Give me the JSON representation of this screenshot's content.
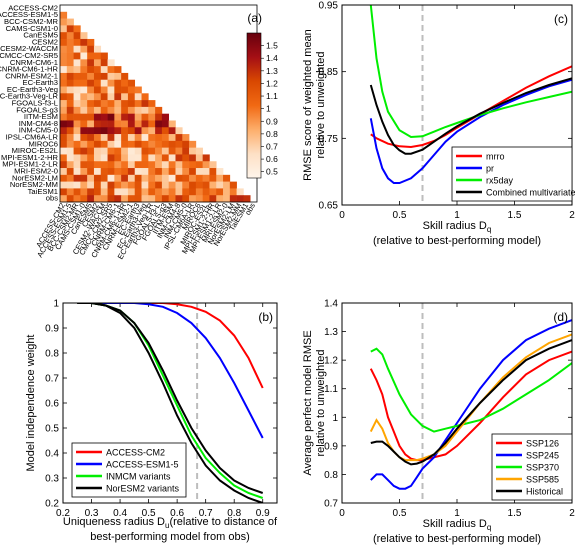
{
  "panel_labels": [
    "(a)",
    "(b)",
    "(c)",
    "(d)"
  ],
  "chart_data": [
    {
      "panel": "(a)",
      "type": "heatmap",
      "title": "",
      "row_labels": [
        "ACCESS-CM2",
        "ACCESS-ESM1-5",
        "BCC-CSM2-MR",
        "CAMS-CSM1-0",
        "CanESM5",
        "CESM2",
        "CESM2-WACCM",
        "CMCC-CM2-SR5",
        "CNRM-CM6-1",
        "CNRM-CM6-1-HR",
        "CNRM-ESM2-1",
        "EC-Earth3",
        "EC-Earth3-Veg",
        "EC-Earth3-Veg-LR",
        "FGOALS-f3-L",
        "FGOALS-g3",
        "IITM-ESM",
        "INM-CM4-8",
        "INM-CM5-0",
        "IPSL-CM6A-LR",
        "MIROC6",
        "MIROC-ES2L",
        "MPI-ESM1-2-HR",
        "MPI-ESM1-2-LR",
        "MRI-ESM2-0",
        "NorESM2-LM",
        "NorESM2-MM",
        "TaiESM1",
        "obs"
      ],
      "colorbar_ticks": [
        "1.5",
        "1.4",
        "1.3",
        "1.2",
        "1.1",
        "1",
        "0.9",
        "0.8",
        "0.7",
        "0.6",
        "0.5"
      ],
      "colorbar_range": [
        0.45,
        1.6
      ],
      "colormap": [
        "#fff5eb",
        "#fde0c5",
        "#fdae6b",
        "#f16913",
        "#d94801",
        "#a50f15",
        "#67000d"
      ]
    },
    {
      "panel": "(b)",
      "type": "line",
      "xlabel": "Uniqueness radius D_u(relative to distance of best-performing model from obs)",
      "xlabel_lines": [
        "Uniqueness radius D",
        "u",
        "(relative to distance of",
        "best-performing model from obs)"
      ],
      "ylabel": "Model independence weight",
      "xlim": [
        0.2,
        0.95
      ],
      "ylim": [
        0.2,
        1.0
      ],
      "xticks": [
        0.2,
        0.3,
        0.4,
        0.5,
        0.6,
        0.7,
        0.8,
        0.9
      ],
      "xtick_labels": [
        "0.2",
        "0.3",
        "0.4",
        "0.5",
        "0.6",
        "0.7",
        "0.8",
        "0.9"
      ],
      "yticks": [
        0.2,
        0.3,
        0.4,
        0.5,
        0.6,
        0.7,
        0.8,
        0.9,
        1.0
      ],
      "ytick_labels": [
        "0.2",
        "0.3",
        "0.4",
        "0.5",
        "0.6",
        "0.7",
        "0.8",
        "0.9",
        "1"
      ],
      "vline": 0.67,
      "legend_position": "bottom-left",
      "series": [
        {
          "name": "ACCESS-CM2",
          "color": "#ff0000",
          "x": [
            0.25,
            0.35,
            0.45,
            0.55,
            0.6,
            0.65,
            0.7,
            0.75,
            0.8,
            0.85,
            0.9
          ],
          "y": [
            1.0,
            1.0,
            1.0,
            1.0,
            0.995,
            0.985,
            0.965,
            0.93,
            0.87,
            0.78,
            0.66
          ]
        },
        {
          "name": "ACCESS-ESM1-5",
          "color": "#0000ff",
          "x": [
            0.25,
            0.35,
            0.45,
            0.5,
            0.55,
            0.6,
            0.65,
            0.7,
            0.75,
            0.8,
            0.85,
            0.9
          ],
          "y": [
            1.0,
            1.0,
            1.0,
            0.995,
            0.985,
            0.96,
            0.92,
            0.86,
            0.78,
            0.68,
            0.57,
            0.46
          ]
        },
        {
          "name": "INMCM variants",
          "color": "#00ee00",
          "x": [
            0.25,
            0.3,
            0.35,
            0.4,
            0.45,
            0.5,
            0.55,
            0.6,
            0.65,
            0.7,
            0.75,
            0.8,
            0.85,
            0.9
          ],
          "y": [
            1.0,
            1.0,
            0.99,
            0.97,
            0.92,
            0.83,
            0.71,
            0.59,
            0.47,
            0.38,
            0.32,
            0.27,
            0.24,
            0.22
          ]
        },
        {
          "name": "NorESM2 variants",
          "color": "#000000",
          "x": [
            0.25,
            0.3,
            0.35,
            0.4,
            0.45,
            0.5,
            0.55,
            0.6,
            0.65,
            0.7,
            0.75,
            0.8,
            0.85,
            0.9
          ],
          "y": [
            1.0,
            1.0,
            0.99,
            0.96,
            0.9,
            0.8,
            0.68,
            0.55,
            0.44,
            0.35,
            0.29,
            0.25,
            0.22,
            0.2
          ]
        },
        {
          "name": "",
          "color": "#000000",
          "x": [
            0.25,
            0.3,
            0.35,
            0.4,
            0.45,
            0.5,
            0.55,
            0.6,
            0.65,
            0.7,
            0.75,
            0.8,
            0.85,
            0.9
          ],
          "y": [
            1.0,
            1.0,
            0.99,
            0.97,
            0.92,
            0.84,
            0.73,
            0.61,
            0.5,
            0.41,
            0.34,
            0.29,
            0.26,
            0.24
          ]
        }
      ]
    },
    {
      "panel": "(c)",
      "type": "line",
      "xlabel": "Skill radius D_q (relative to best-performing model)",
      "xlabel_lines": [
        "Skill radius D",
        "q",
        "(relative to best-performing model)"
      ],
      "ylabel": "RMSE score of weighted mean relative to unweighted",
      "ylabel_lines": [
        "RMSE score of weighted mean",
        "relative to unweighted"
      ],
      "xlim": [
        0,
        2
      ],
      "ylim": [
        0.65,
        0.95
      ],
      "xticks": [
        0,
        0.5,
        1,
        1.5,
        2
      ],
      "xtick_labels": [
        "0",
        "0.5",
        "1",
        "1.5",
        "2"
      ],
      "yticks": [
        0.65,
        0.75,
        0.85,
        0.95
      ],
      "ytick_labels": [
        "0.65",
        "0.75",
        "0.85",
        "0.95"
      ],
      "vline": 0.7,
      "legend_position": "bottom-right",
      "series": [
        {
          "name": "mrro",
          "color": "#ff0000",
          "x": [
            0.25,
            0.3,
            0.4,
            0.5,
            0.6,
            0.7,
            0.8,
            0.9,
            1.0,
            1.2,
            1.4,
            1.6,
            1.8,
            2.0
          ],
          "y": [
            0.756,
            0.75,
            0.742,
            0.738,
            0.737,
            0.74,
            0.746,
            0.755,
            0.766,
            0.786,
            0.806,
            0.826,
            0.843,
            0.858
          ]
        },
        {
          "name": "pr",
          "color": "#0000ff",
          "x": [
            0.25,
            0.3,
            0.35,
            0.4,
            0.45,
            0.5,
            0.6,
            0.7,
            0.8,
            0.9,
            1.0,
            1.2,
            1.4,
            1.6,
            1.8,
            2.0
          ],
          "y": [
            0.78,
            0.735,
            0.705,
            0.69,
            0.683,
            0.683,
            0.69,
            0.705,
            0.725,
            0.745,
            0.76,
            0.782,
            0.8,
            0.815,
            0.828,
            0.838
          ]
        },
        {
          "name": "rx5day",
          "color": "#00ee00",
          "x": [
            0.25,
            0.3,
            0.35,
            0.4,
            0.5,
            0.6,
            0.7,
            0.8,
            0.9,
            1.0,
            1.2,
            1.4,
            1.6,
            1.8,
            2.0
          ],
          "y": [
            0.95,
            0.87,
            0.82,
            0.79,
            0.762,
            0.752,
            0.753,
            0.76,
            0.767,
            0.773,
            0.785,
            0.795,
            0.804,
            0.812,
            0.82
          ]
        },
        {
          "name": "Combined multivariate",
          "color": "#000000",
          "x": [
            0.25,
            0.3,
            0.35,
            0.4,
            0.45,
            0.5,
            0.55,
            0.6,
            0.7,
            0.8,
            0.9,
            1.0,
            1.2,
            1.4,
            1.6,
            1.8,
            2.0
          ],
          "y": [
            0.83,
            0.8,
            0.775,
            0.755,
            0.74,
            0.732,
            0.727,
            0.727,
            0.733,
            0.745,
            0.757,
            0.768,
            0.787,
            0.803,
            0.818,
            0.83,
            0.84
          ]
        }
      ]
    },
    {
      "panel": "(d)",
      "type": "line",
      "xlabel": "Skill radius D_q (relative to best-performing model)",
      "xlabel_lines": [
        "Skill radius D",
        "q",
        "(relative to best-performing model)"
      ],
      "ylabel": "Average perfect model RMSE relative to unweighted",
      "ylabel_lines": [
        "Average perfect model RMSE",
        "relative to unweighted"
      ],
      "xlim": [
        0,
        2
      ],
      "ylim": [
        0.7,
        1.4
      ],
      "xticks": [
        0,
        0.5,
        1,
        1.5,
        2
      ],
      "xtick_labels": [
        "0",
        "0.5",
        "1",
        "1.5",
        "2"
      ],
      "yticks": [
        0.7,
        0.8,
        0.9,
        1.0,
        1.1,
        1.2,
        1.3,
        1.4
      ],
      "ytick_labels": [
        "0.7",
        "0.8",
        "0.9",
        "1",
        "1.1",
        "1.2",
        "1.3",
        "1.4"
      ],
      "vline": 0.7,
      "legend_position": "bottom-right",
      "series": [
        {
          "name": "SSP126",
          "color": "#ff0000",
          "x": [
            0.25,
            0.3,
            0.35,
            0.4,
            0.45,
            0.5,
            0.55,
            0.6,
            0.65,
            0.7,
            0.8,
            0.9,
            1.0,
            1.2,
            1.4,
            1.6,
            1.8,
            2.0
          ],
          "y": [
            1.17,
            1.13,
            1.08,
            1.0,
            0.95,
            0.9,
            0.87,
            0.855,
            0.85,
            0.85,
            0.86,
            0.87,
            0.9,
            0.98,
            1.07,
            1.15,
            1.2,
            1.23
          ]
        },
        {
          "name": "SSP245",
          "color": "#0000ff",
          "x": [
            0.25,
            0.3,
            0.35,
            0.4,
            0.45,
            0.5,
            0.55,
            0.6,
            0.65,
            0.7,
            0.8,
            0.9,
            1.0,
            1.2,
            1.4,
            1.6,
            1.8,
            2.0
          ],
          "y": [
            0.78,
            0.8,
            0.8,
            0.78,
            0.76,
            0.75,
            0.75,
            0.76,
            0.79,
            0.82,
            0.86,
            0.92,
            0.98,
            1.1,
            1.2,
            1.27,
            1.31,
            1.34
          ]
        },
        {
          "name": "SSP370",
          "color": "#00ee00",
          "x": [
            0.25,
            0.3,
            0.35,
            0.4,
            0.5,
            0.6,
            0.7,
            0.8,
            0.9,
            1.0,
            1.2,
            1.4,
            1.6,
            1.8,
            2.0
          ],
          "y": [
            1.23,
            1.24,
            1.22,
            1.17,
            1.08,
            1.01,
            0.97,
            0.95,
            0.96,
            0.97,
            0.99,
            1.03,
            1.08,
            1.13,
            1.19
          ]
        },
        {
          "name": "SSP585",
          "color": "#ffa500",
          "x": [
            0.25,
            0.3,
            0.35,
            0.4,
            0.45,
            0.5,
            0.55,
            0.6,
            0.65,
            0.7,
            0.8,
            0.9,
            1.0,
            1.2,
            1.4,
            1.6,
            1.8,
            2.0
          ],
          "y": [
            0.95,
            0.99,
            0.96,
            0.91,
            0.88,
            0.86,
            0.85,
            0.85,
            0.85,
            0.855,
            0.87,
            0.9,
            0.95,
            1.05,
            1.14,
            1.21,
            1.26,
            1.29
          ]
        },
        {
          "name": "Historical",
          "color": "#000000",
          "x": [
            0.25,
            0.3,
            0.35,
            0.4,
            0.45,
            0.5,
            0.55,
            0.6,
            0.65,
            0.7,
            0.8,
            0.9,
            1.0,
            1.2,
            1.4,
            1.6,
            1.8,
            2.0
          ],
          "y": [
            0.91,
            0.915,
            0.915,
            0.9,
            0.88,
            0.86,
            0.845,
            0.835,
            0.838,
            0.845,
            0.87,
            0.91,
            0.96,
            1.05,
            1.13,
            1.2,
            1.24,
            1.27
          ]
        }
      ]
    }
  ]
}
